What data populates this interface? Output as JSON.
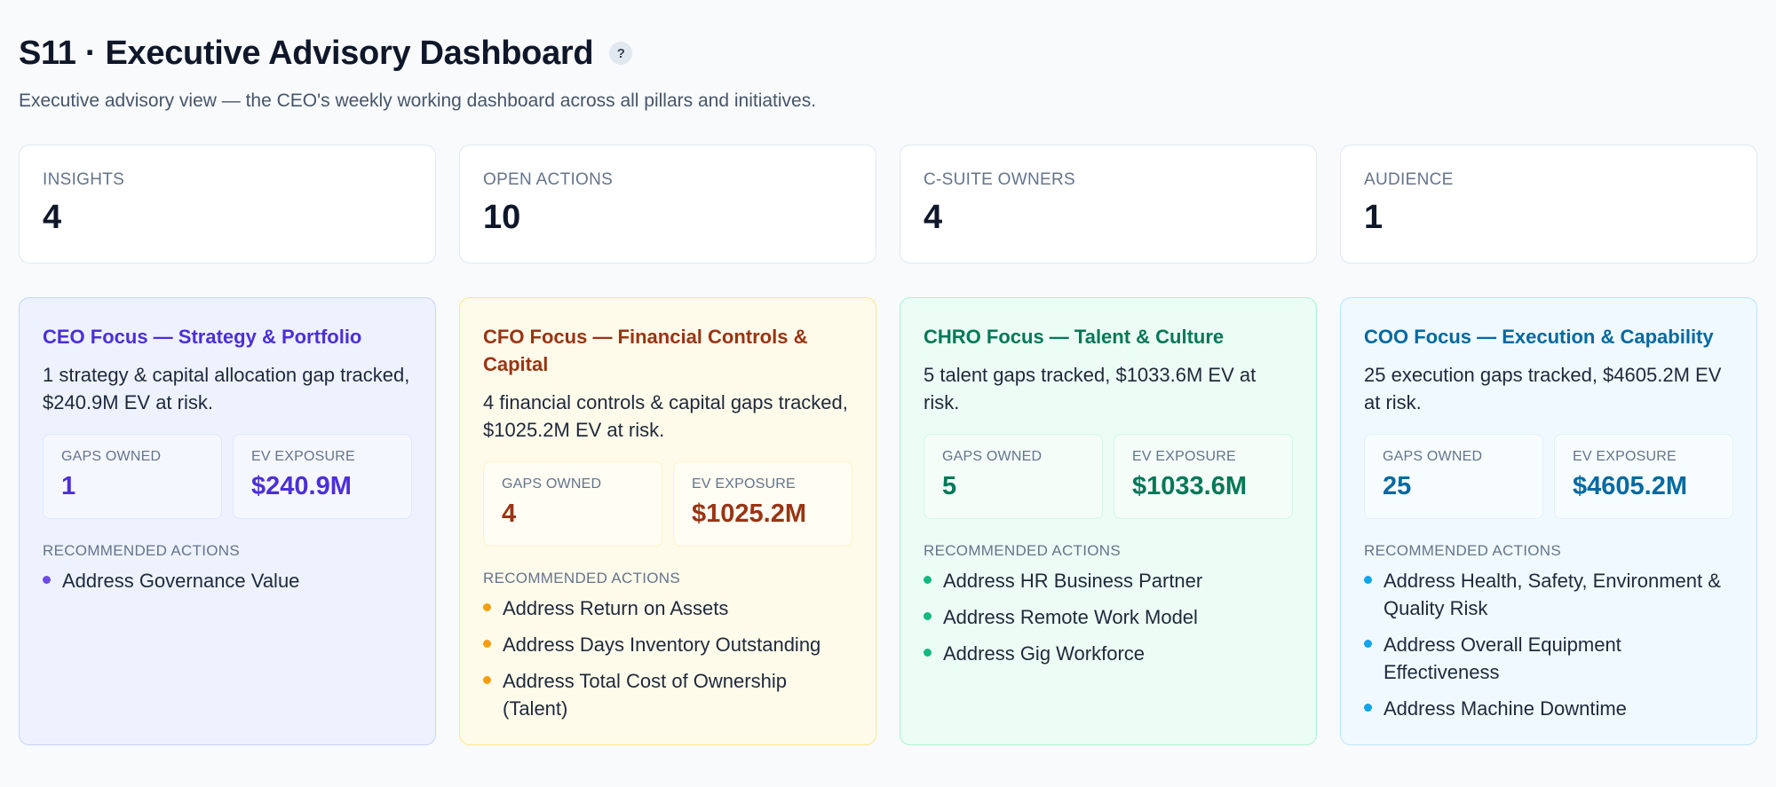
{
  "header": {
    "title": "S11 · Executive Advisory Dashboard",
    "help_label": "?",
    "subtitle": "Executive advisory view — the CEO's weekly working dashboard across all pillars and initiatives."
  },
  "kpis": [
    {
      "label": "INSIGHTS",
      "value": "4"
    },
    {
      "label": "OPEN ACTIONS",
      "value": "10"
    },
    {
      "label": "C-SUITE OWNERS",
      "value": "4"
    },
    {
      "label": "AUDIENCE",
      "value": "1"
    }
  ],
  "cards": [
    {
      "title": "CEO Focus — Strategy & Portfolio",
      "description": "1 strategy & capital allocation gap tracked, $240.9M EV at risk.",
      "gaps_label": "GAPS OWNED",
      "gaps_value": "1",
      "ev_label": "EV EXPOSURE",
      "ev_value": "$240.9M",
      "actions_label": "RECOMMENDED ACTIONS",
      "actions": [
        "Address Governance Value"
      ]
    },
    {
      "title": "CFO Focus — Financial Controls & Capital",
      "description": "4 financial controls & capital gaps tracked, $1025.2M EV at risk.",
      "gaps_label": "GAPS OWNED",
      "gaps_value": "4",
      "ev_label": "EV EXPOSURE",
      "ev_value": "$1025.2M",
      "actions_label": "RECOMMENDED ACTIONS",
      "actions": [
        "Address Return on Assets",
        "Address Days Inventory Outstanding",
        "Address Total Cost of Ownership (Talent)"
      ]
    },
    {
      "title": "CHRO Focus — Talent & Culture",
      "description": "5 talent gaps tracked, $1033.6M EV at risk.",
      "gaps_label": "GAPS OWNED",
      "gaps_value": "5",
      "ev_label": "EV EXPOSURE",
      "ev_value": "$1033.6M",
      "actions_label": "RECOMMENDED ACTIONS",
      "actions": [
        "Address HR Business Partner",
        "Address Remote Work Model",
        "Address Gig Workforce"
      ]
    },
    {
      "title": "COO Focus — Execution & Capability",
      "description": "25 execution gaps tracked, $4605.2M EV at risk.",
      "gaps_label": "GAPS OWNED",
      "gaps_value": "25",
      "ev_label": "EV EXPOSURE",
      "ev_value": "$4605.2M",
      "actions_label": "RECOMMENDED ACTIONS",
      "actions": [
        "Address Health, Safety, Environment & Quality Risk",
        "Address Overall Equipment Effectiveness",
        "Address Machine Downtime"
      ]
    }
  ]
}
